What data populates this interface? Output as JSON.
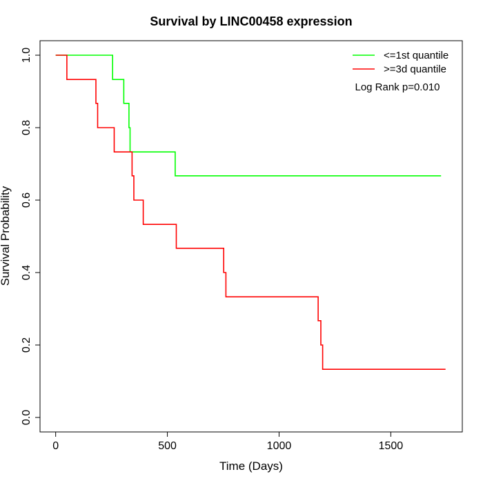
{
  "chart_data": {
    "type": "line",
    "title": "Survival by LINC00458 expression",
    "xlabel": "Time (Days)",
    "ylabel": "Survival Probability",
    "xlim": [
      -70,
      1820
    ],
    "ylim": [
      -0.04,
      1.04
    ],
    "x_ticks": [
      0,
      500,
      1000,
      1500
    ],
    "x_tick_labels": [
      "0",
      "500",
      "1000",
      "1500"
    ],
    "y_ticks": [
      0.0,
      0.2,
      0.4,
      0.6,
      0.8,
      1.0
    ],
    "y_tick_labels": [
      "0.0",
      "0.2",
      "0.4",
      "0.6",
      "0.8",
      "1.0"
    ],
    "grid": false,
    "legend_position": "top-right",
    "annotation": "Log Rank p=0.010",
    "series": [
      {
        "name": "<=1st quantile",
        "color": "#00ff00",
        "points": [
          [
            0,
            1.0
          ],
          [
            255,
            1.0
          ],
          [
            255,
            0.933
          ],
          [
            305,
            0.933
          ],
          [
            305,
            0.867
          ],
          [
            328,
            0.867
          ],
          [
            328,
            0.8
          ],
          [
            333,
            0.8
          ],
          [
            333,
            0.733
          ],
          [
            535,
            0.733
          ],
          [
            535,
            0.667
          ],
          [
            1725,
            0.667
          ]
        ]
      },
      {
        "name": ">=3d quantile",
        "color": "#ff0000",
        "points": [
          [
            0,
            1.0
          ],
          [
            50,
            1.0
          ],
          [
            50,
            0.933
          ],
          [
            180,
            0.933
          ],
          [
            180,
            0.867
          ],
          [
            188,
            0.867
          ],
          [
            188,
            0.8
          ],
          [
            262,
            0.8
          ],
          [
            262,
            0.733
          ],
          [
            342,
            0.733
          ],
          [
            342,
            0.667
          ],
          [
            350,
            0.667
          ],
          [
            350,
            0.6
          ],
          [
            392,
            0.6
          ],
          [
            392,
            0.533
          ],
          [
            540,
            0.533
          ],
          [
            540,
            0.467
          ],
          [
            752,
            0.467
          ],
          [
            752,
            0.4
          ],
          [
            762,
            0.4
          ],
          [
            762,
            0.333
          ],
          [
            1175,
            0.333
          ],
          [
            1175,
            0.267
          ],
          [
            1187,
            0.267
          ],
          [
            1187,
            0.2
          ],
          [
            1195,
            0.2
          ],
          [
            1195,
            0.133
          ],
          [
            1745,
            0.133
          ]
        ]
      }
    ]
  }
}
